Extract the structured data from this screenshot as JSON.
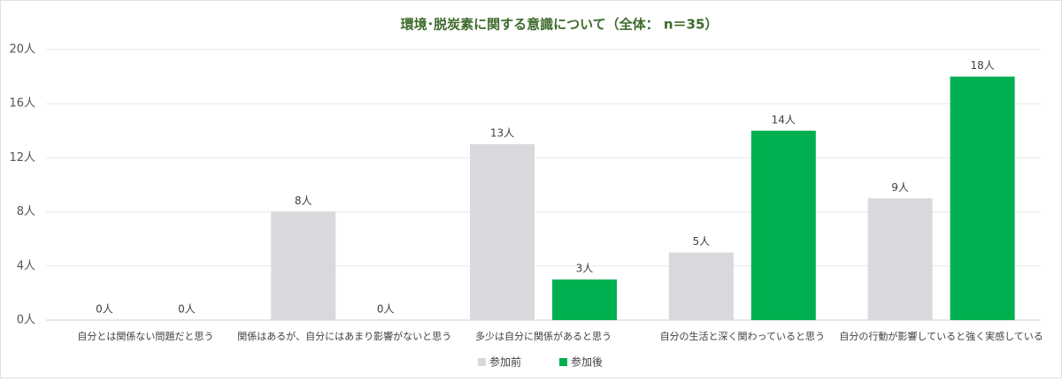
{
  "chart_data": {
    "type": "bar",
    "title": "環境･脱炭素に関する意識について（全体： n＝35）",
    "categories": [
      "自分とは関係ない問題だと思う",
      "関係はあるが、自分にはあまり影響がないと思う",
      "多少は自分に関係があると思う",
      "自分の生活と深く関わっていると思う",
      "自分の行動が影響していると強く実感している"
    ],
    "series": [
      {
        "name": "参加前",
        "color": "#d9d8dc",
        "values": [
          0,
          8,
          13,
          5,
          9
        ],
        "value_labels": [
          "0人",
          "8人",
          "13人",
          "5人",
          "9人"
        ]
      },
      {
        "name": "参加後",
        "color": "#00b050",
        "values": [
          0,
          0,
          3,
          14,
          18
        ],
        "value_labels": [
          "0人",
          "0人",
          "3人",
          "14人",
          "18人"
        ]
      }
    ],
    "ylim": [
      0,
      20
    ],
    "yticks": [
      {
        "value": 0,
        "label": "0人"
      },
      {
        "value": 4,
        "label": "4人"
      },
      {
        "value": 8,
        "label": "8人"
      },
      {
        "value": 12,
        "label": "12人"
      },
      {
        "value": 16,
        "label": "16人"
      },
      {
        "value": 20,
        "label": "20人"
      }
    ],
    "grid": true,
    "legend": "bottom"
  }
}
